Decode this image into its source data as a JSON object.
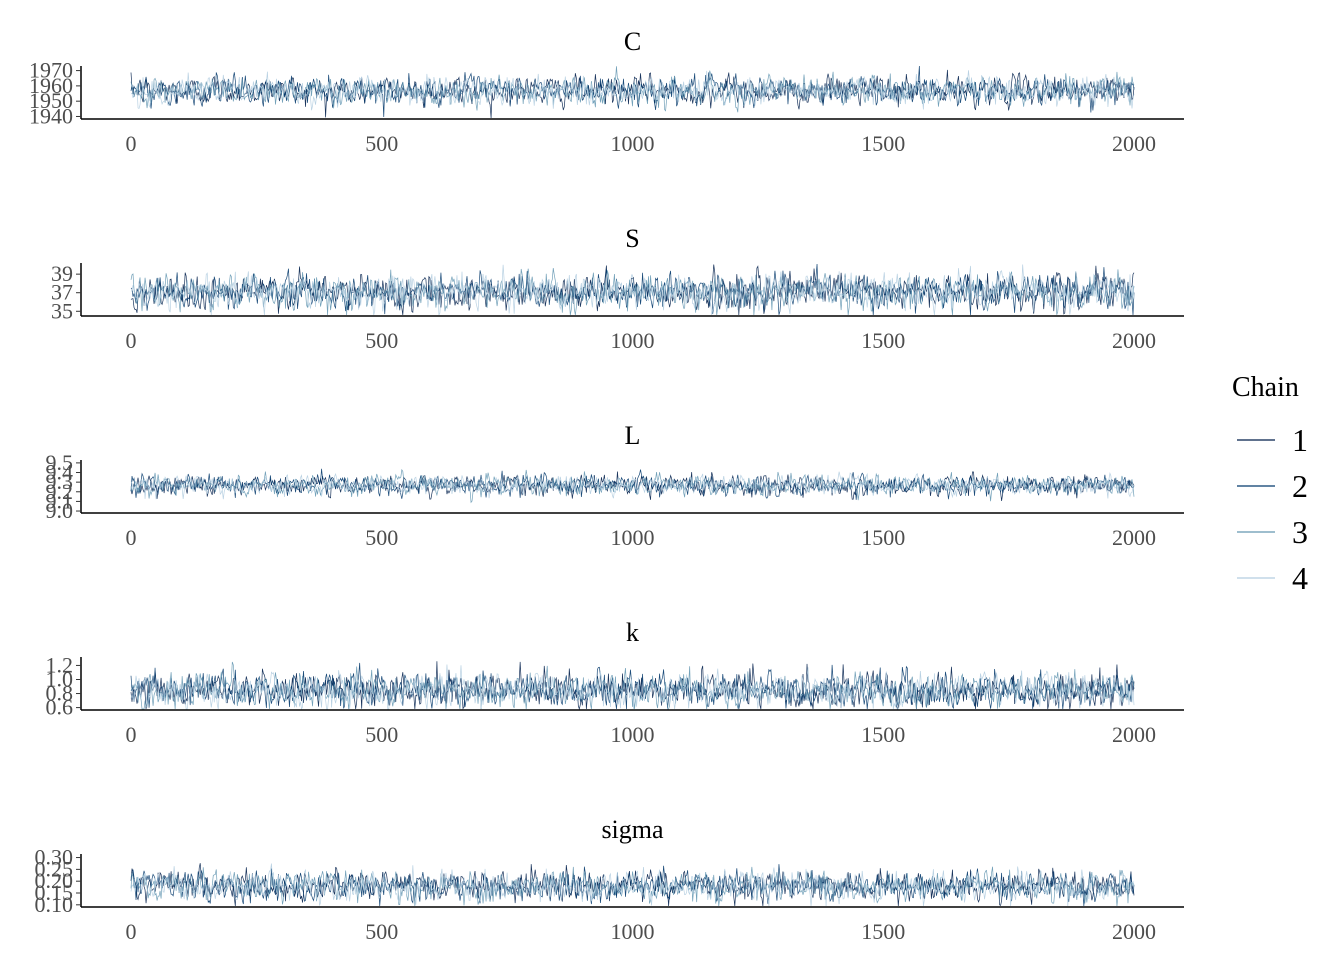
{
  "chart_data": {
    "type": "line",
    "x_ticks": [
      0,
      500,
      1000,
      1500,
      2000
    ],
    "xlim": [
      -100,
      2100
    ],
    "n_iterations": 2000,
    "legend": {
      "title": "Chain",
      "placement": "right",
      "entries": [
        {
          "label": "1",
          "color": "#011f4b"
        },
        {
          "label": "2",
          "color": "#03396c"
        },
        {
          "label": "3",
          "color": "#6497b1"
        },
        {
          "label": "4",
          "color": "#b3cde0"
        }
      ]
    },
    "panels": [
      {
        "title": "C",
        "yticks": [
          1940,
          1950,
          1960,
          1970
        ],
        "ylim": [
          1939,
          1973
        ],
        "mean": 1957,
        "sd": 4.5
      },
      {
        "title": "S",
        "yticks": [
          35,
          37,
          39
        ],
        "ylim": [
          34.6,
          40.2
        ],
        "mean": 37.1,
        "sd": 0.9
      },
      {
        "title": "L",
        "yticks": [
          9.0,
          9.1,
          9.2,
          9.3,
          9.4,
          9.5
        ],
        "ylim": [
          8.99,
          9.53
        ],
        "mean": 9.27,
        "sd": 0.05
      },
      {
        "title": "k",
        "yticks": [
          0.6,
          0.8,
          1.0,
          1.2
        ],
        "ylim": [
          0.58,
          1.32
        ],
        "mean": 0.85,
        "sd": 0.12
      },
      {
        "title": "sigma",
        "yticks": [
          0.1,
          0.15,
          0.2,
          0.25,
          0.3
        ],
        "ylim": [
          0.095,
          0.315
        ],
        "mean": 0.18,
        "sd": 0.03
      }
    ]
  }
}
